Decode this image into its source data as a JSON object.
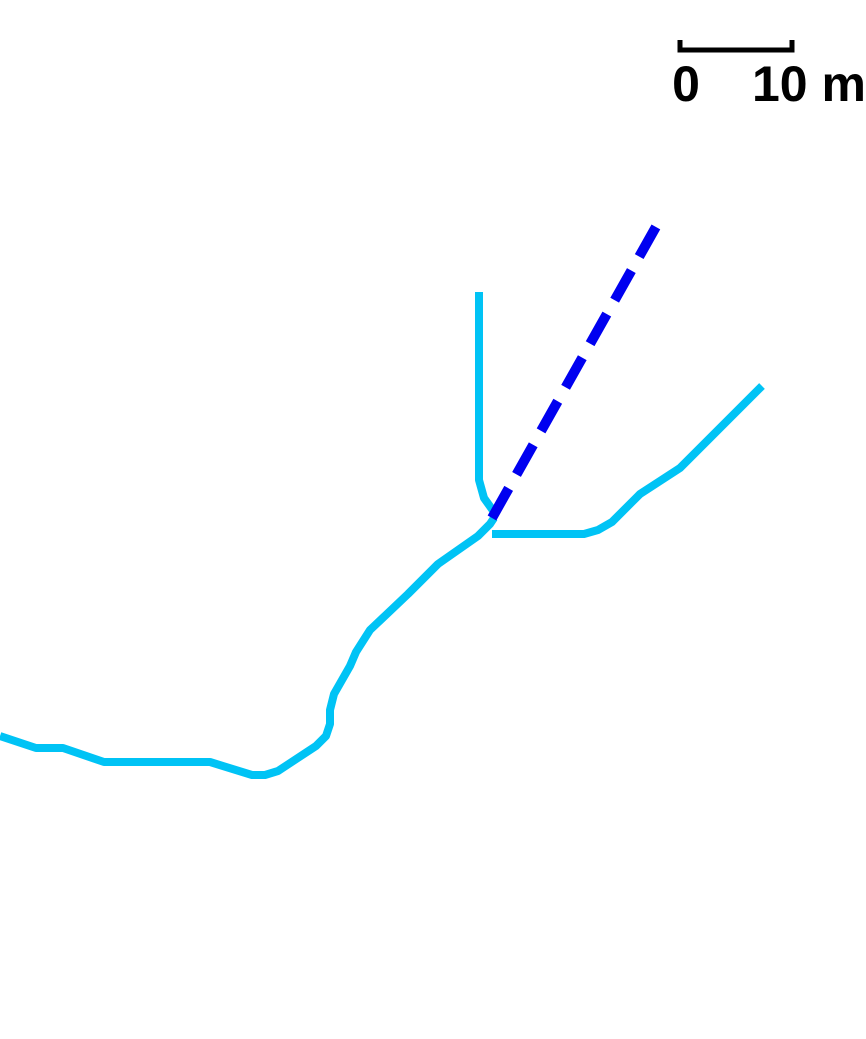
{
  "map": {
    "background_color": "#ffffff",
    "stream_color": "#00c3f5",
    "dashed_line_color": "#0000f0"
  },
  "scale_bar": {
    "start_label": "0",
    "end_label": "10 m",
    "color": "#000000"
  }
}
